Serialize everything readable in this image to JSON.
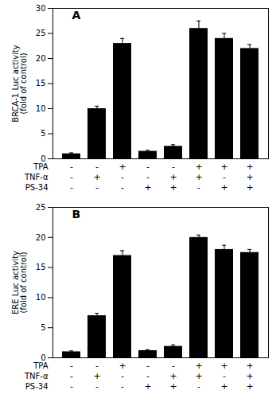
{
  "chart_data": [
    {
      "type": "bar",
      "title": "A",
      "ylabel": "BRCA-1 Luc activity\n(fold of control)",
      "categories": [
        null,
        null,
        null,
        null,
        null,
        null,
        null,
        null
      ],
      "values": [
        1.0,
        10.0,
        23.0,
        1.5,
        2.5,
        26.0,
        24.0,
        22.0
      ],
      "errors": [
        0.2,
        0.5,
        1.0,
        0.2,
        0.3,
        1.5,
        1.0,
        0.8
      ],
      "ylim": [
        0,
        30
      ],
      "yticks": [
        0,
        5,
        10,
        15,
        20,
        25,
        30
      ],
      "grid": false,
      "conditions": [
        {
          "name": "TPA",
          "values": [
            "-",
            "-",
            "+",
            "-",
            "-",
            "+",
            "+",
            "+"
          ]
        },
        {
          "name": "TNF-α",
          "values": [
            "-",
            "+",
            "-",
            "-",
            "+",
            "+",
            "-",
            "+"
          ]
        },
        {
          "name": "PS-34",
          "values": [
            "-",
            "-",
            "-",
            "+",
            "+",
            "-",
            "+",
            "+"
          ]
        }
      ]
    },
    {
      "type": "bar",
      "title": "B",
      "ylabel": "ERE Luc activity\n(fold of control)",
      "categories": [
        null,
        null,
        null,
        null,
        null,
        null,
        null,
        null
      ],
      "values": [
        1.0,
        7.0,
        17.0,
        1.2,
        1.9,
        20.0,
        18.0,
        17.5
      ],
      "errors": [
        0.15,
        0.4,
        0.8,
        0.15,
        0.25,
        0.4,
        0.7,
        0.5
      ],
      "ylim": [
        0,
        25
      ],
      "yticks": [
        0,
        5,
        10,
        15,
        20,
        25
      ],
      "grid": false,
      "conditions": [
        {
          "name": "TPA",
          "values": [
            "-",
            "-",
            "+",
            "-",
            "-",
            "+",
            "+",
            "+"
          ]
        },
        {
          "name": "TNF-α",
          "values": [
            "-",
            "+",
            "-",
            "-",
            "+",
            "+",
            "-",
            "+"
          ]
        },
        {
          "name": "PS-34",
          "values": [
            "-",
            "-",
            "-",
            "+",
            "+",
            "-",
            "+",
            "+"
          ]
        }
      ]
    }
  ]
}
